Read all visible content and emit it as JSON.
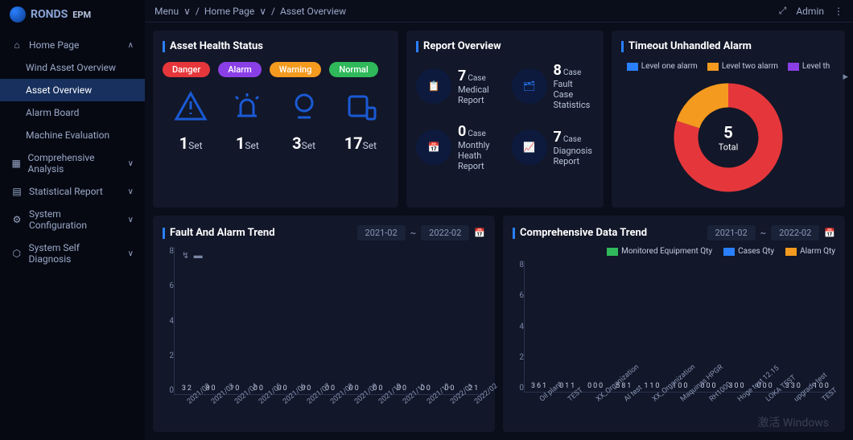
{
  "brand": {
    "name": "RONDS",
    "product": "EPM"
  },
  "breadcrumb": {
    "menu": "Menu",
    "home": "Home Page",
    "current": "Asset Overview"
  },
  "admin": "Admin",
  "sidebar": {
    "items": [
      {
        "label": "Home Page",
        "icon": "home",
        "expand": true
      },
      {
        "label": "Wind Asset Overview",
        "sub": true
      },
      {
        "label": "Asset Overview",
        "sub": true,
        "active": true
      },
      {
        "label": "Alarm Board",
        "sub": true
      },
      {
        "label": "Machine Evaluation",
        "sub": true
      },
      {
        "label": "Comprehensive Analysis",
        "icon": "grid",
        "chev": true
      },
      {
        "label": "Statistical Report",
        "icon": "table",
        "chev": true
      },
      {
        "label": "System Configuration",
        "icon": "gear",
        "chev": true
      },
      {
        "label": "System Self Diagnosis",
        "icon": "shield",
        "chev": true
      }
    ]
  },
  "health": {
    "title": "Asset Health Status",
    "pills": [
      {
        "label": "Danger",
        "color": "#e5373b"
      },
      {
        "label": "Alarm",
        "color": "#8a3fe6"
      },
      {
        "label": "Warning",
        "color": "#f39a1f"
      },
      {
        "label": "Normal",
        "color": "#2fb95a"
      }
    ],
    "set_label": "Set",
    "items": [
      {
        "count": 1
      },
      {
        "count": 1
      },
      {
        "count": 3
      },
      {
        "count": 17
      }
    ],
    "icon_color": "#1a5ad4"
  },
  "reports": {
    "title": "Report Overview",
    "case": "Case",
    "items": [
      {
        "count": 7,
        "label": "Medical Report",
        "icon": "clip"
      },
      {
        "count": 8,
        "label": "Fault Case Statistics",
        "icon": "pie"
      },
      {
        "count": 0,
        "label": "Monthly Heath Report",
        "icon": "cal"
      },
      {
        "count": 7,
        "label": "Diagnosis Report",
        "icon": "chart"
      }
    ]
  },
  "donut": {
    "title": "Timeout Unhandled Alarm",
    "total_label": "Total",
    "total": 5,
    "legend": [
      {
        "label": "Level one alarm",
        "color": "#2a7fff"
      },
      {
        "label": "Level two alarm",
        "color": "#f39a1f"
      },
      {
        "label": "Level th",
        "color": "#8a3fe6"
      }
    ],
    "slices": [
      {
        "value": 4,
        "color": "#e5373b"
      },
      {
        "value": 1,
        "color": "#f39a1f"
      }
    ]
  },
  "chart1": {
    "title": "Fault And Alarm Trend",
    "date_from": "2021-02",
    "date_to": "2022-02",
    "ymax": 8,
    "yticks": [
      8,
      6,
      4,
      2,
      0
    ],
    "colors": {
      "a": "#2a7fff",
      "b": "#f39a1f"
    },
    "categories": [
      "2021/02",
      "2021/03",
      "2021/04",
      "2021/05",
      "2021/06",
      "2021/07",
      "2021/08",
      "2021/09",
      "2021/10",
      "2021/11",
      "2021/12",
      "2022/01",
      "2022/02"
    ],
    "series": [
      {
        "a": 3,
        "b": 2
      },
      {
        "a": 8,
        "b": 0
      },
      {
        "a": 1,
        "b": 0
      },
      {
        "a": 0,
        "b": 0
      },
      {
        "a": 0,
        "b": 0
      },
      {
        "a": 0,
        "b": 0
      },
      {
        "a": 0,
        "b": 0
      },
      {
        "a": 0,
        "b": 0
      },
      {
        "a": 0,
        "b": 0
      },
      {
        "a": 0,
        "b": 0
      },
      {
        "a": 0,
        "b": 0
      },
      {
        "a": 0,
        "b": 0
      },
      {
        "a": 2,
        "b": 1
      }
    ]
  },
  "chart2": {
    "title": "Comprehensive Data Trend",
    "date_from": "2021-02",
    "date_to": "2022-02",
    "ymax": 8,
    "yticks": [
      8,
      6,
      4,
      2,
      0
    ],
    "legend": [
      {
        "label": "Monitored Equipment Qty",
        "color": "#2fb95a"
      },
      {
        "label": "Cases Qty",
        "color": "#2a7fff"
      },
      {
        "label": "Alarm Qty",
        "color": "#f39a1f"
      }
    ],
    "categories": [
      "Oil plant",
      "TEST",
      "XX_Organization",
      "AI test",
      "XX_Organization",
      "Maquinas HPGR",
      "RH1000",
      "Hoge test 12.15",
      "LOKA TEST",
      "upgrade test",
      "TEST"
    ],
    "series": [
      {
        "g": 3,
        "b": 6,
        "o": 1
      },
      {
        "g": 0,
        "b": 1,
        "o": 1
      },
      {
        "g": 0,
        "b": 0,
        "o": 0
      },
      {
        "g": 5,
        "b": 8,
        "o": 1
      },
      {
        "g": 1,
        "b": 1,
        "o": 0
      },
      {
        "g": 1,
        "b": 0,
        "o": 0
      },
      {
        "g": 0,
        "b": 0,
        "o": 0
      },
      {
        "g": 3,
        "b": 0,
        "o": 0
      },
      {
        "g": 0,
        "b": 0,
        "o": 0
      },
      {
        "g": 3,
        "b": 3,
        "o": 0
      },
      {
        "g": 1,
        "b": 0,
        "o": 0
      }
    ]
  },
  "watermark": "激活 Windows"
}
